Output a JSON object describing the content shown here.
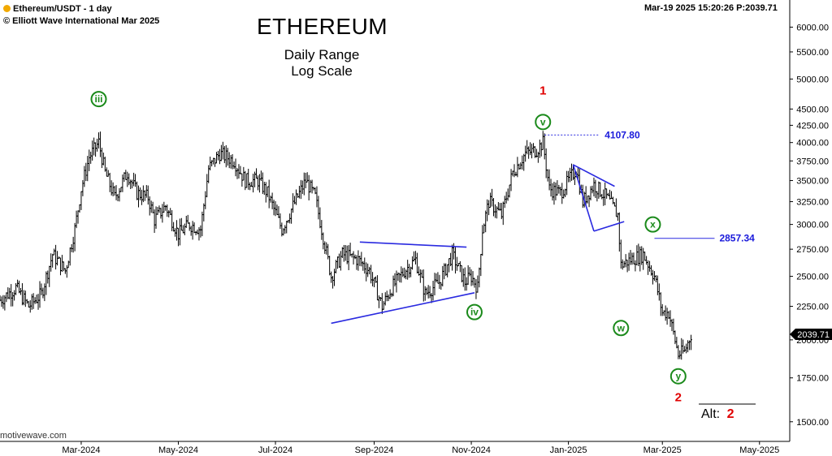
{
  "header": {
    "symbol_line": "Ethereum/USDT - 1 day",
    "copyright": "© Elliott Wave International Mar 2025",
    "timestamp": "Mar-19 2025  15:20:26  P:2039.71"
  },
  "title": "ETHEREUM",
  "subtitle_line1": "Daily Range",
  "subtitle_line2": "Log Scale",
  "watermark": "motivewave.com",
  "alt_label": "Alt:",
  "alt_value": "2",
  "colors": {
    "wave_green": "#1b8a1b",
    "wave_red": "#e00000",
    "trend_blue": "#2a2ae0",
    "price_label_blue": "#1a1adb",
    "bars": "#000000",
    "logo_dot": "#f2a900"
  },
  "chart_data": {
    "type": "ohlc",
    "title": "ETHEREUM",
    "scale": "log",
    "ylim": [
      1400,
      6600
    ],
    "xlim": [
      "2024-01-10",
      "2025-05-20"
    ],
    "y_ticks": [
      "6000.00",
      "5500.00",
      "5000.00",
      "4500.00",
      "4250.00",
      "4000.00",
      "3750.00",
      "3500.00",
      "3250.00",
      "3000.00",
      "2750.00",
      "2500.00",
      "2250.00",
      "2000.00",
      "1750.00",
      "1500.00"
    ],
    "y_tick_values": [
      6000,
      5500,
      5000,
      4500,
      4250,
      4000,
      3750,
      3500,
      3250,
      3000,
      2750,
      2500,
      2250,
      2000,
      1750,
      1500
    ],
    "x_ticks": [
      {
        "label": "Mar-2024",
        "date": "2024-03-01"
      },
      {
        "label": "May-2024",
        "date": "2024-05-01"
      },
      {
        "label": "Jul-2024",
        "date": "2024-07-01"
      },
      {
        "label": "Sep-2024",
        "date": "2024-09-01"
      },
      {
        "label": "Nov-2024",
        "date": "2024-11-01"
      },
      {
        "label": "Jan-2025",
        "date": "2025-01-01"
      },
      {
        "label": "Mar-2025",
        "date": "2025-03-01"
      },
      {
        "label": "May-2025",
        "date": "2025-05-01"
      }
    ],
    "last_price": "2039.71",
    "last_price_value": 2039.71,
    "series": [
      {
        "name": "Daily Range",
        "points": [
          [
            "2024-01-10",
            2300
          ],
          [
            "2024-01-20",
            2400
          ],
          [
            "2024-01-28",
            2250
          ],
          [
            "2024-02-05",
            2350
          ],
          [
            "2024-02-12",
            2700
          ],
          [
            "2024-02-20",
            2550
          ],
          [
            "2024-02-26",
            2950
          ],
          [
            "2024-03-01",
            3400
          ],
          [
            "2024-03-06",
            3800
          ],
          [
            "2024-03-12",
            4000
          ],
          [
            "2024-03-16",
            3600
          ],
          [
            "2024-03-22",
            3300
          ],
          [
            "2024-03-30",
            3600
          ],
          [
            "2024-04-05",
            3350
          ],
          [
            "2024-04-12",
            3300
          ],
          [
            "2024-04-16",
            3050
          ],
          [
            "2024-04-23",
            3200
          ],
          [
            "2024-05-01",
            2900
          ],
          [
            "2024-05-08",
            3000
          ],
          [
            "2024-05-15",
            2950
          ],
          [
            "2024-05-20",
            3650
          ],
          [
            "2024-05-27",
            3850
          ],
          [
            "2024-06-05",
            3750
          ],
          [
            "2024-06-12",
            3500
          ],
          [
            "2024-06-20",
            3500
          ],
          [
            "2024-06-26",
            3350
          ],
          [
            "2024-07-05",
            2950
          ],
          [
            "2024-07-12",
            3200
          ],
          [
            "2024-07-20",
            3500
          ],
          [
            "2024-07-26",
            3300
          ],
          [
            "2024-08-05",
            2500
          ],
          [
            "2024-08-12",
            2700
          ],
          [
            "2024-08-22",
            2650
          ],
          [
            "2024-08-29",
            2550
          ],
          [
            "2024-09-06",
            2250
          ],
          [
            "2024-09-12",
            2400
          ],
          [
            "2024-09-20",
            2550
          ],
          [
            "2024-09-27",
            2650
          ],
          [
            "2024-10-03",
            2350
          ],
          [
            "2024-10-12",
            2450
          ],
          [
            "2024-10-20",
            2700
          ],
          [
            "2024-10-28",
            2450
          ],
          [
            "2024-11-01",
            2500
          ],
          [
            "2024-11-05",
            2400
          ],
          [
            "2024-11-08",
            2950
          ],
          [
            "2024-11-12",
            3250
          ],
          [
            "2024-11-20",
            3100
          ],
          [
            "2024-11-27",
            3600
          ],
          [
            "2024-12-05",
            3850
          ],
          [
            "2024-12-12",
            3900
          ],
          [
            "2024-12-16",
            4000
          ],
          [
            "2024-12-20",
            3400
          ],
          [
            "2024-12-27",
            3350
          ],
          [
            "2025-01-06",
            3650
          ],
          [
            "2025-01-10",
            3250
          ],
          [
            "2025-01-17",
            3450
          ],
          [
            "2025-01-25",
            3300
          ],
          [
            "2025-02-01",
            3100
          ],
          [
            "2025-02-03",
            2600
          ],
          [
            "2025-02-09",
            2650
          ],
          [
            "2025-02-17",
            2700
          ],
          [
            "2025-02-24",
            2500
          ],
          [
            "2025-03-01",
            2200
          ],
          [
            "2025-03-05",
            2200
          ],
          [
            "2025-03-11",
            1900
          ],
          [
            "2025-03-15",
            1920
          ],
          [
            "2025-03-19",
            2039.71
          ]
        ]
      }
    ],
    "trendlines": [
      {
        "name": "triangle-1-lower",
        "points": [
          [
            "2024-08-05",
            2120
          ],
          [
            "2024-11-03",
            2360
          ]
        ]
      },
      {
        "name": "triangle-1-upper",
        "points": [
          [
            "2024-08-23",
            2820
          ],
          [
            "2024-10-29",
            2770
          ]
        ]
      },
      {
        "name": "triangle-2-upper",
        "points": [
          [
            "2025-01-04",
            3700
          ],
          [
            "2025-01-30",
            3430
          ]
        ]
      },
      {
        "name": "triangle-2-lower",
        "points": [
          [
            "2025-01-17",
            2930
          ],
          [
            "2025-02-05",
            3030
          ]
        ]
      },
      {
        "name": "triangle-2-side",
        "points": [
          [
            "2025-01-04",
            3700
          ],
          [
            "2025-01-17",
            2930
          ]
        ]
      }
    ],
    "price_levels": [
      {
        "label": "4107.80",
        "value": 4107.8,
        "from": "2024-12-16",
        "style": "dashed"
      },
      {
        "label": "2857.34",
        "value": 2857.34,
        "from": "2025-02-23",
        "style": "solid"
      }
    ],
    "wave_labels": [
      {
        "text": "iii",
        "date": "2024-03-12",
        "price": 4660,
        "color": "green",
        "circled": true
      },
      {
        "text": "iv",
        "date": "2024-11-03",
        "price": 2205,
        "color": "green",
        "circled": true
      },
      {
        "text": "v",
        "date": "2024-12-16",
        "price": 4300,
        "color": "green",
        "circled": true
      },
      {
        "text": "1",
        "date": "2024-12-16",
        "price": 4800,
        "color": "red",
        "circled": false
      },
      {
        "text": "w",
        "date": "2025-02-03",
        "price": 2085,
        "color": "green",
        "circled": true
      },
      {
        "text": "x",
        "date": "2025-02-23",
        "price": 3000,
        "color": "green",
        "circled": true
      },
      {
        "text": "y",
        "date": "2025-03-11",
        "price": 1760,
        "color": "green",
        "circled": true
      },
      {
        "text": "2",
        "date": "2025-03-11",
        "price": 1635,
        "color": "red",
        "circled": false
      }
    ]
  }
}
